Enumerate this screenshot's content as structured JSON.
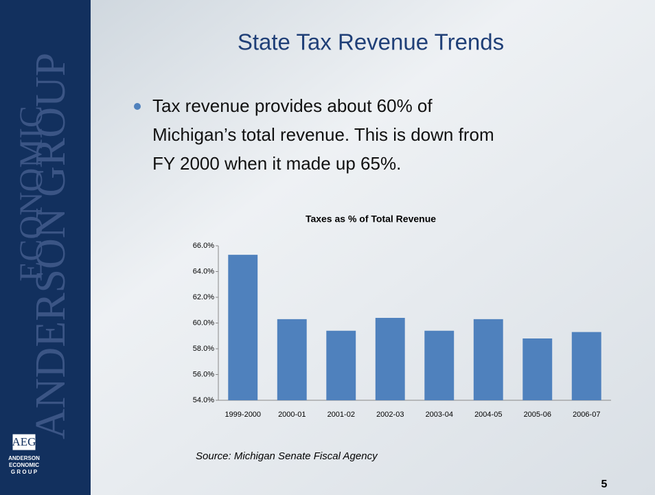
{
  "slide": {
    "title": "State Tax Revenue Trends",
    "bullet": [
      "Tax revenue provides about 60% of",
      "Michigan’s total revenue. This is down from",
      "FY 2000 when it made up 65%."
    ],
    "source": "Source: Michigan Senate Fiscal Agency",
    "page": "5",
    "brand": [
      "ECONOMIC",
      "ANDERSON GROUP"
    ],
    "logo": [
      "AEG",
      "ANDERSON",
      "ECONOMIC",
      "G R O U P"
    ]
  },
  "chart_data": {
    "type": "bar",
    "title": "Taxes as % of Total Revenue",
    "categories": [
      "1999-2000",
      "2000-01",
      "2001-02",
      "2002-03",
      "2003-04",
      "2004-05",
      "2005-06",
      "2006-07"
    ],
    "values": [
      65.3,
      60.3,
      59.4,
      60.4,
      59.4,
      60.3,
      58.8,
      59.3
    ],
    "color": "#4f81bd",
    "ylim": [
      54,
      66
    ],
    "yticks": [
      {
        "value": 54,
        "label": "54.0%"
      },
      {
        "value": 56,
        "label": "56.0%"
      },
      {
        "value": 58,
        "label": "58.0%"
      },
      {
        "value": 60,
        "label": "60.0%"
      },
      {
        "value": 62,
        "label": "62.0%"
      },
      {
        "value": 64,
        "label": "64.0%"
      },
      {
        "value": 66,
        "label": "66.0%"
      }
    ],
    "grid": false
  }
}
